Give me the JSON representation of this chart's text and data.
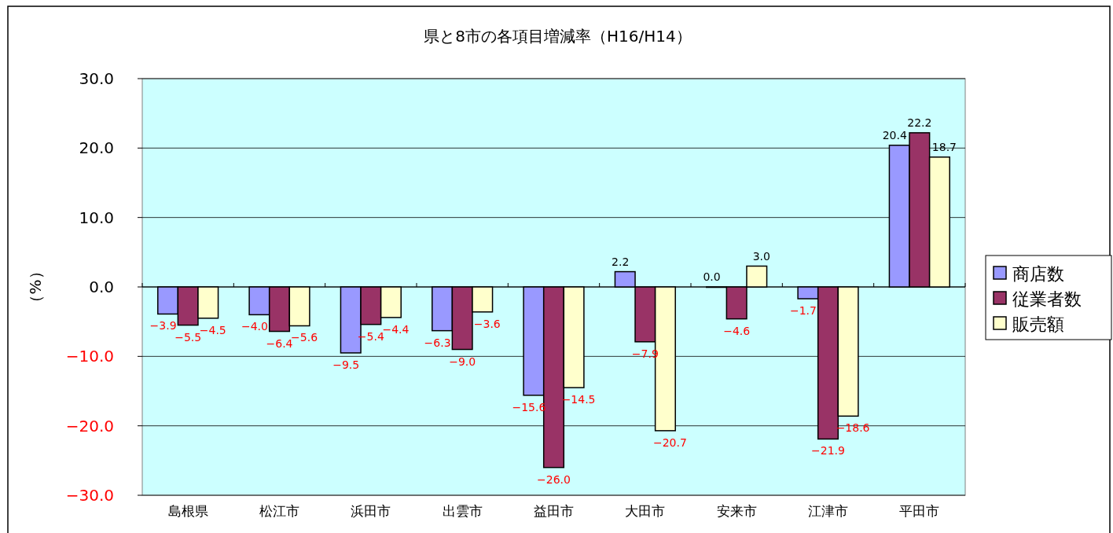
{
  "chart_data": {
    "type": "bar",
    "title": "県と8市の各項目増減率（H16/H14）",
    "ylabel": "（%）",
    "categories": [
      "島根県",
      "松江市",
      "浜田市",
      "出雲市",
      "益田市",
      "大田市",
      "安来市",
      "江津市",
      "平田市"
    ],
    "series": [
      {
        "name": "商店数",
        "color": "#9999ff",
        "values": [
          -3.9,
          -4.0,
          -9.5,
          -6.3,
          -15.6,
          2.2,
          0.0,
          -1.7,
          20.4
        ],
        "value_labels": [
          "−3.9",
          "−4.0",
          "−9.5",
          "−6.3",
          "−15.6",
          "2.2",
          "0.0",
          "−1.7",
          "20.4"
        ]
      },
      {
        "name": "従業者数",
        "color": "#993366",
        "values": [
          -5.5,
          -6.4,
          -5.4,
          -9.0,
          -26.0,
          -7.9,
          -4.6,
          -21.9,
          22.2
        ],
        "value_labels": [
          "−5.5",
          "−6.4",
          "−5.4",
          "−9.0",
          "−26.0",
          "−7.9",
          "−4.6",
          "−21.9",
          "22.2"
        ]
      },
      {
        "name": "販売額",
        "color": "#ffffcc",
        "values": [
          -4.5,
          -5.6,
          -4.4,
          -3.6,
          -14.5,
          -20.7,
          3.0,
          -18.6,
          18.7
        ],
        "value_labels": [
          "−4.5",
          "−5.6",
          "−4.4",
          "−3.6",
          "−14.5",
          "−20.7",
          "3.0",
          "−18.6",
          "18.7"
        ]
      }
    ],
    "ylim": [
      -30,
      30
    ],
    "yticks": [
      {
        "value": -30,
        "label": "−30.0"
      },
      {
        "value": -20,
        "label": "−20.0"
      },
      {
        "value": -10,
        "label": "−10.0"
      },
      {
        "value": 0,
        "label": "0.0"
      },
      {
        "value": 10,
        "label": "10.0"
      },
      {
        "value": 20,
        "label": "20.0"
      },
      {
        "value": 30,
        "label": "30.0"
      }
    ],
    "grid": "y",
    "legend": "right"
  }
}
